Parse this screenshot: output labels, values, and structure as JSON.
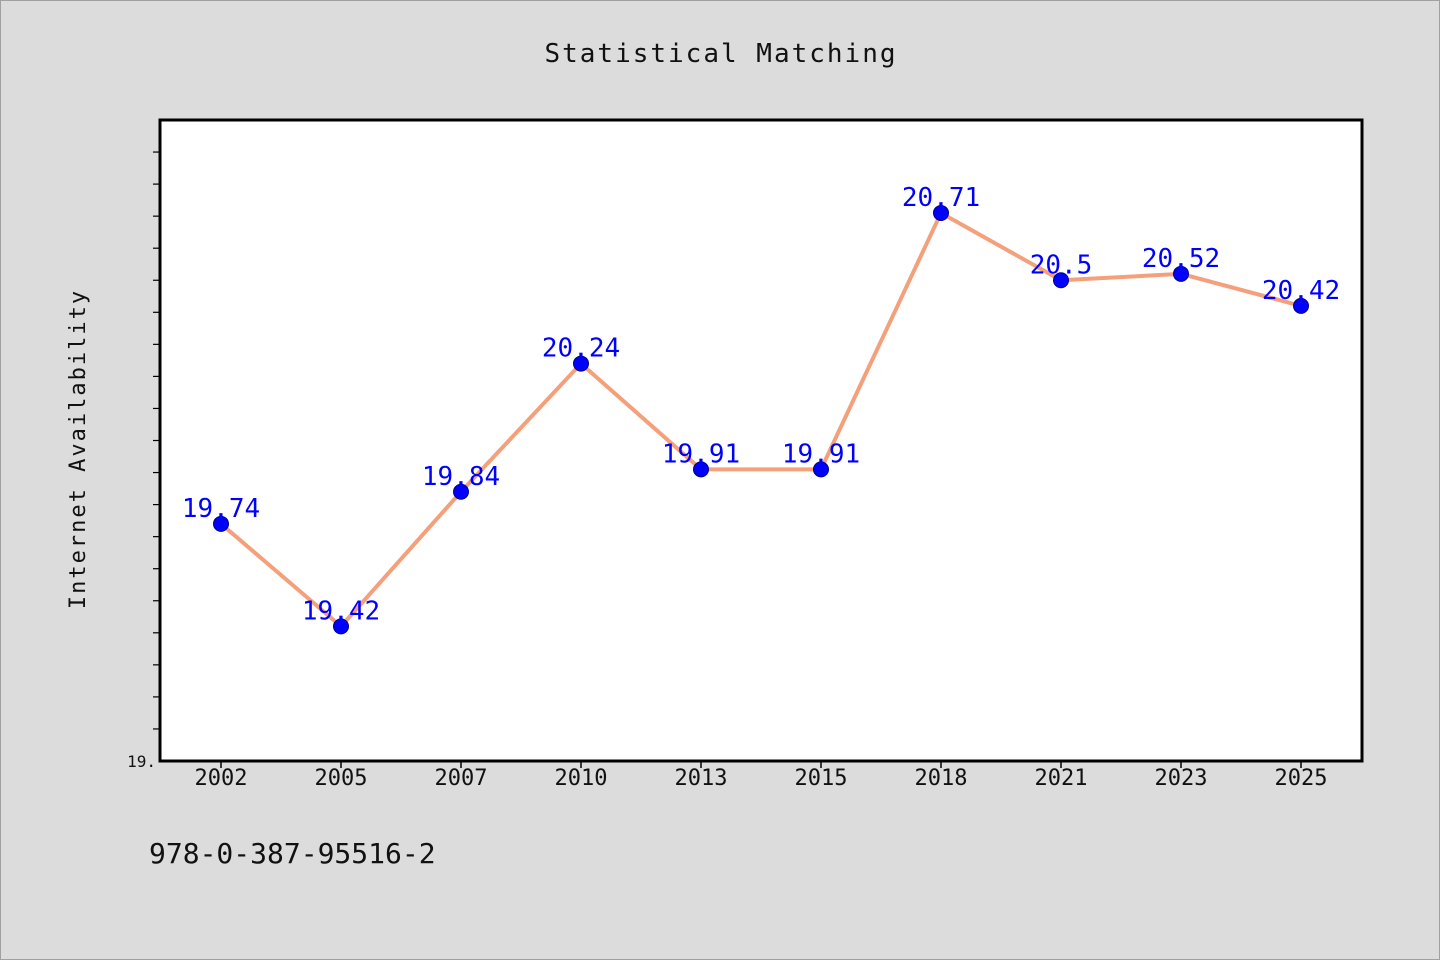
{
  "chart_data": {
    "type": "line",
    "title": "Statistical Matching",
    "xlabel": "",
    "ylabel": "Internet Availability",
    "categories": [
      "2002",
      "2005",
      "2007",
      "2010",
      "2013",
      "2015",
      "2018",
      "2021",
      "2023",
      "2025"
    ],
    "series": [
      {
        "values": [
          19.74,
          19.42,
          19.84,
          20.24,
          19.91,
          19.91,
          20.71,
          20.5,
          20.52,
          20.42
        ],
        "labels": [
          "19.74",
          "19.42",
          "19.84",
          "20.24",
          "19.91",
          "19.91",
          "20.71",
          "20.5",
          "20.52",
          "20.42"
        ],
        "line_color": "#f4a07a",
        "marker_color": "#0000ff"
      }
    ],
    "ylim": [
      19.0,
      21.0
    ],
    "y_tick_labels": [
      {
        "value": 19.0,
        "label": "19."
      }
    ],
    "y_minor_step": 0.1,
    "grid": false,
    "legend": "none",
    "plot_background": "#ffffff",
    "page_background": "#dcdcdc"
  },
  "footer": {
    "text": "978-0-387-95516-2"
  }
}
